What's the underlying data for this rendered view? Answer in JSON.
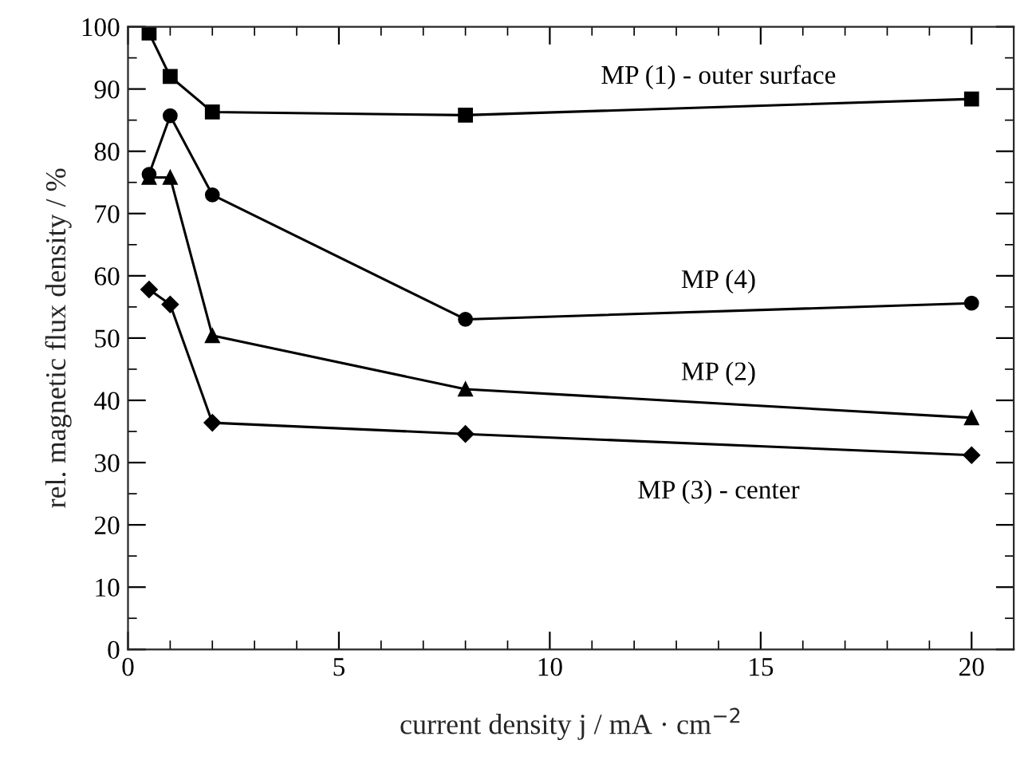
{
  "chart_data": {
    "type": "line",
    "xlabel": "current density j / mA · cm$^{−2}$",
    "ylabel": "rel. magnetic flux density / %",
    "x": [
      0.5,
      1,
      2,
      8,
      20
    ],
    "series": [
      {
        "name": "MP (1) - outer surface",
        "color": "#000000",
        "marker": "square",
        "values": [
          99,
          92,
          86.3,
          85.8,
          88.4
        ]
      },
      {
        "name": "MP (4)",
        "color": "#000000",
        "marker": "circle",
        "values": [
          76.3,
          85.7,
          73,
          53,
          55.6
        ]
      },
      {
        "name": "MP (2)",
        "color": "#000000",
        "marker": "triangle",
        "values": [
          75.8,
          75.8,
          50.4,
          41.8,
          37.2
        ]
      },
      {
        "name": "MP (3) - center",
        "color": "#000000",
        "marker": "diamond",
        "values": [
          57.8,
          55.4,
          36.4,
          34.6,
          31.2
        ]
      }
    ],
    "xlim": [
      0,
      21
    ],
    "ylim": [
      0,
      100
    ],
    "xticks": [
      0,
      5,
      10,
      15,
      20
    ],
    "yticks": [
      0,
      10,
      20,
      30,
      40,
      50,
      60,
      70,
      80,
      90,
      100
    ],
    "grid": false,
    "line_style": "solid"
  }
}
